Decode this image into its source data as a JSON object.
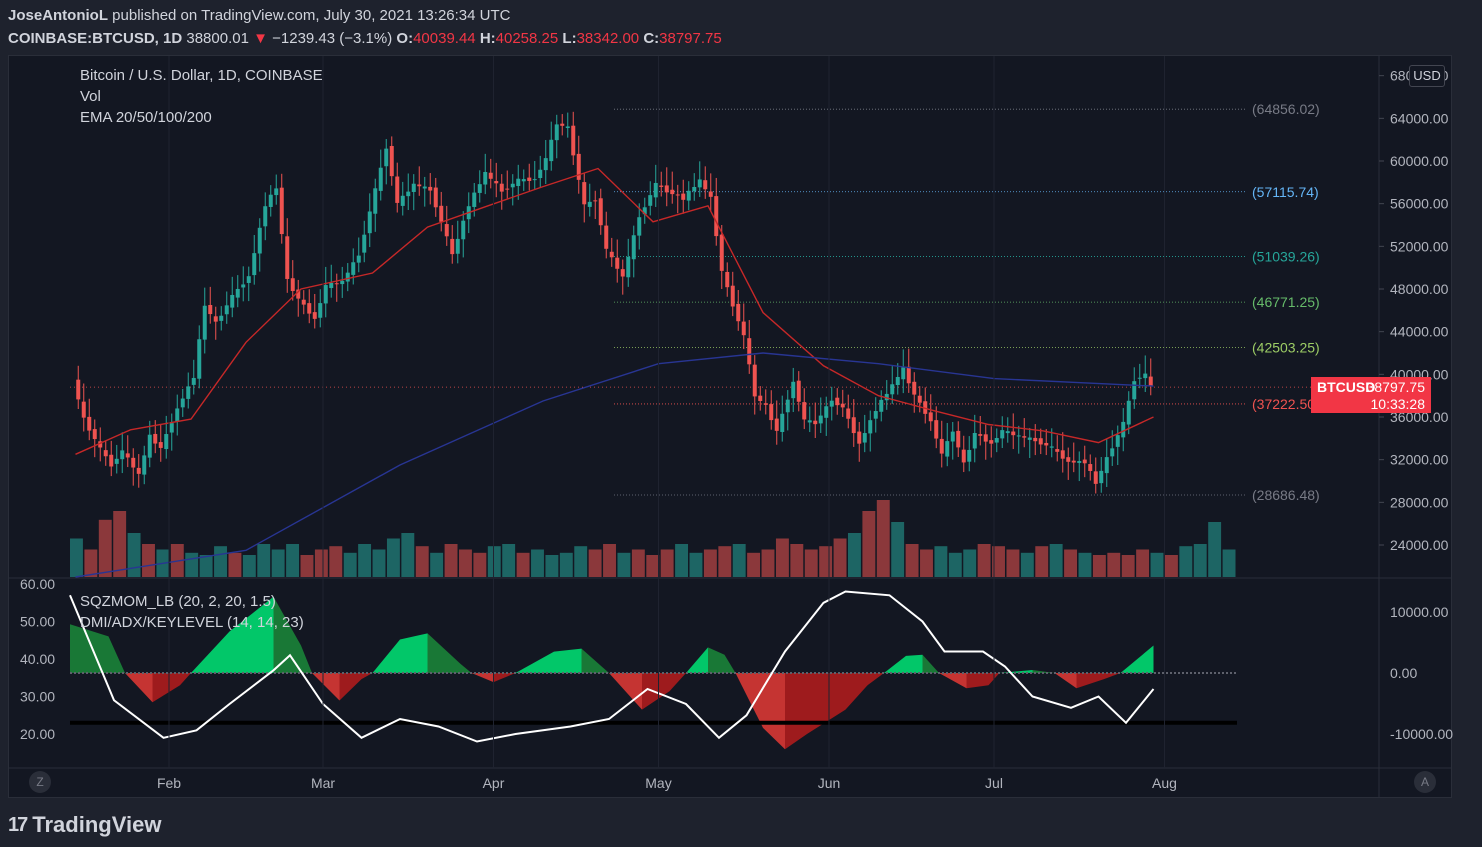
{
  "header": {
    "author": "JoseAntonioL",
    "published_text": "published on TradingView.com, July 30, 2021 13:26:34 UTC",
    "symbol": "COINBASE:BTCUSD, 1D",
    "last": "38800.01",
    "change_arrow": "▼",
    "change": "−1239.43 (−3.1%)",
    "open_label": "O:",
    "open": "40039.44",
    "high_label": "H:",
    "high": "40258.25",
    "low_label": "L:",
    "low": "38342.00",
    "close_label": "C:",
    "close": "38797.75"
  },
  "legend": {
    "title": "Bitcoin / U.S. Dollar, 1D, COINBASE",
    "vol": "Vol",
    "ema": "EMA 20/50/100/200"
  },
  "indicator_legend": {
    "sqz": "SQZMOM_LB (20, 2, 20, 1.5)",
    "dmi": "DMI/ADX/KEYLEVEL (14, 14, 23)"
  },
  "price_badge": {
    "symbol": "BTCUSD",
    "value": "38797.75",
    "countdown": "10:33:28"
  },
  "currency": "USD",
  "scale_buttons": {
    "left": "Z",
    "right": "A"
  },
  "footer": {
    "brand": "TradingView",
    "logo_mark": "17"
  },
  "colors": {
    "background": "#131722",
    "up": "#26a69a",
    "down": "#ef5350",
    "ema_red": "#c62828",
    "ema_blue": "#1a237e",
    "green_hist": "#00c853",
    "red_hist": "#d50000"
  },
  "chart_data": {
    "type": "candlestick",
    "title": "Bitcoin / U.S. Dollar, 1D, COINBASE",
    "price_axis": {
      "ticks": [
        "68000.00",
        "64000.00",
        "60000.00",
        "56000.00",
        "52000.00",
        "48000.00",
        "44000.00",
        "40000.00",
        "36000.00",
        "32000.00",
        "28000.00",
        "24000.00"
      ],
      "ylim": [
        21000,
        69000
      ]
    },
    "time_axis": {
      "ticks": [
        "Feb",
        "Mar",
        "Apr",
        "May",
        "Jun",
        "Jul",
        "Aug"
      ]
    },
    "key_levels": [
      {
        "label": "(64856.02)",
        "value": 64856.02,
        "color": "#787b86"
      },
      {
        "label": "(57115.74)",
        "value": 57115.74,
        "color": "#64b5f6"
      },
      {
        "label": "(51039.26)",
        "value": 51039.26,
        "color": "#26a69a"
      },
      {
        "label": "(46771.25)",
        "value": 46771.25,
        "color": "#66bb6a"
      },
      {
        "label": "(42503.25)",
        "value": 42503.25,
        "color": "#9ccc65"
      },
      {
        "label": "(37222.50)",
        "value": 37222.5,
        "color": "#ef5350"
      },
      {
        "label": "(28686.48)",
        "value": 28686.48,
        "color": "#787b86"
      }
    ],
    "price_path": [
      [
        "2021-01-15",
        39500
      ],
      [
        "2021-01-17",
        35800
      ],
      [
        "2021-01-20",
        33000
      ],
      [
        "2021-01-22",
        31500
      ],
      [
        "2021-01-24",
        32800
      ],
      [
        "2021-01-27",
        30600
      ],
      [
        "2021-01-29",
        34200
      ],
      [
        "2021-01-31",
        33100
      ],
      [
        "2021-02-03",
        36800
      ],
      [
        "2021-02-06",
        39800
      ],
      [
        "2021-02-08",
        46500
      ],
      [
        "2021-02-10",
        44800
      ],
      [
        "2021-02-13",
        47300
      ],
      [
        "2021-02-16",
        49200
      ],
      [
        "2021-02-19",
        55900
      ],
      [
        "2021-02-21",
        57500
      ],
      [
        "2021-02-23",
        48800
      ],
      [
        "2021-02-25",
        47100
      ],
      [
        "2021-02-28",
        45200
      ],
      [
        "2021-03-02",
        48300
      ],
      [
        "2021-03-05",
        48700
      ],
      [
        "2021-03-08",
        51200
      ],
      [
        "2021-03-11",
        57300
      ],
      [
        "2021-03-13",
        61300
      ],
      [
        "2021-03-15",
        56000
      ],
      [
        "2021-03-18",
        57800
      ],
      [
        "2021-03-21",
        57300
      ],
      [
        "2021-03-24",
        52800
      ],
      [
        "2021-03-25",
        51200
      ],
      [
        "2021-03-28",
        55900
      ],
      [
        "2021-03-31",
        58900
      ],
      [
        "2021-04-03",
        57200
      ],
      [
        "2021-04-06",
        58200
      ],
      [
        "2021-04-09",
        58300
      ],
      [
        "2021-04-11",
        60200
      ],
      [
        "2021-04-13",
        63500
      ],
      [
        "2021-04-15",
        63100
      ],
      [
        "2021-04-18",
        55800
      ],
      [
        "2021-04-20",
        56400
      ],
      [
        "2021-04-22",
        51700
      ],
      [
        "2021-04-25",
        49100
      ],
      [
        "2021-04-28",
        54800
      ],
      [
        "2021-05-01",
        57800
      ],
      [
        "2021-05-03",
        57200
      ],
      [
        "2021-05-06",
        56500
      ],
      [
        "2021-05-09",
        58200
      ],
      [
        "2021-05-11",
        56500
      ],
      [
        "2021-05-13",
        49700
      ],
      [
        "2021-05-15",
        46500
      ],
      [
        "2021-05-17",
        43600
      ],
      [
        "2021-05-19",
        38000
      ],
      [
        "2021-05-21",
        37000
      ],
      [
        "2021-05-23",
        34700
      ],
      [
        "2021-05-26",
        39300
      ],
      [
        "2021-05-28",
        35700
      ],
      [
        "2021-05-30",
        35400
      ],
      [
        "2021-06-02",
        37600
      ],
      [
        "2021-06-04",
        36900
      ],
      [
        "2021-06-07",
        33500
      ],
      [
        "2021-06-10",
        36700
      ],
      [
        "2021-06-13",
        39000
      ],
      [
        "2021-06-15",
        40500
      ],
      [
        "2021-06-17",
        38100
      ],
      [
        "2021-06-20",
        35600
      ],
      [
        "2021-06-22",
        32500
      ],
      [
        "2021-06-24",
        34700
      ],
      [
        "2021-06-26",
        31600
      ],
      [
        "2021-06-28",
        34500
      ],
      [
        "2021-07-01",
        33500
      ],
      [
        "2021-07-03",
        34700
      ],
      [
        "2021-07-06",
        34200
      ],
      [
        "2021-07-09",
        33800
      ],
      [
        "2021-07-12",
        33100
      ],
      [
        "2021-07-15",
        31800
      ],
      [
        "2021-07-18",
        31800
      ],
      [
        "2021-07-20",
        29800
      ],
      [
        "2021-07-22",
        32100
      ],
      [
        "2021-07-25",
        35400
      ],
      [
        "2021-07-27",
        39500
      ],
      [
        "2021-07-29",
        40000
      ],
      [
        "2021-07-30",
        38797.75
      ]
    ],
    "ema_20": [
      [
        "2021-01-15",
        32500
      ],
      [
        "2021-01-25",
        34800
      ],
      [
        "2021-02-05",
        35800
      ],
      [
        "2021-02-15",
        43000
      ],
      [
        "2021-02-25",
        48000
      ],
      [
        "2021-03-10",
        49500
      ],
      [
        "2021-03-20",
        53800
      ],
      [
        "2021-03-31",
        55800
      ],
      [
        "2021-04-10",
        57600
      ],
      [
        "2021-04-20",
        59300
      ],
      [
        "2021-04-30",
        54300
      ],
      [
        "2021-05-10",
        55800
      ],
      [
        "2021-05-20",
        45800
      ],
      [
        "2021-05-31",
        40800
      ],
      [
        "2021-06-10",
        38000
      ],
      [
        "2021-06-20",
        36600
      ],
      [
        "2021-06-30",
        35300
      ],
      [
        "2021-07-10",
        34700
      ],
      [
        "2021-07-20",
        33600
      ],
      [
        "2021-07-30",
        36000
      ]
    ],
    "ema_200": [
      [
        "2021-01-15",
        21000
      ],
      [
        "2021-02-15",
        23500
      ],
      [
        "2021-03-15",
        31500
      ],
      [
        "2021-04-10",
        37500
      ],
      [
        "2021-05-01",
        41000
      ],
      [
        "2021-05-20",
        42000
      ],
      [
        "2021-06-10",
        41000
      ],
      [
        "2021-07-01",
        39600
      ],
      [
        "2021-07-30",
        38900
      ]
    ],
    "volume_relative": [
      0.35,
      0.25,
      0.52,
      0.6,
      0.4,
      0.3,
      0.25,
      0.3,
      0.22,
      0.2,
      0.28,
      0.22,
      0.2,
      0.3,
      0.25,
      0.3,
      0.2,
      0.25,
      0.28,
      0.22,
      0.3,
      0.25,
      0.35,
      0.4,
      0.28,
      0.22,
      0.3,
      0.25,
      0.22,
      0.28,
      0.3,
      0.22,
      0.25,
      0.2,
      0.22,
      0.28,
      0.25,
      0.3,
      0.22,
      0.25,
      0.2,
      0.25,
      0.3,
      0.22,
      0.25,
      0.28,
      0.3,
      0.22,
      0.25,
      0.35,
      0.3,
      0.25,
      0.28,
      0.35,
      0.4,
      0.6,
      0.7,
      0.5,
      0.3,
      0.25,
      0.28,
      0.22,
      0.25,
      0.3,
      0.28,
      0.25,
      0.22,
      0.28,
      0.3,
      0.25,
      0.22,
      0.2,
      0.22,
      0.2,
      0.25,
      0.22,
      0.2,
      0.28,
      0.3,
      0.5,
      0.25
    ],
    "indicator_axis_left": {
      "ticks": [
        "60.00",
        "50.00",
        "40.00",
        "30.00",
        "20.00"
      ]
    },
    "indicator_axis_right": {
      "ticks": [
        "10000.00",
        "0.00",
        "-10000.00"
      ]
    },
    "squeeze_momentum": [
      [
        "2021-01-14",
        8000
      ],
      [
        "2021-01-21",
        6000
      ],
      [
        "2021-01-24",
        0
      ],
      [
        "2021-01-29",
        -4800
      ],
      [
        "2021-02-03",
        -2000
      ],
      [
        "2021-02-05",
        0
      ],
      [
        "2021-02-12",
        6800
      ],
      [
        "2021-02-20",
        12500
      ],
      [
        "2021-02-25",
        4500
      ],
      [
        "2021-02-27",
        0
      ],
      [
        "2021-03-04",
        -4500
      ],
      [
        "2021-03-08",
        -1000
      ],
      [
        "2021-03-10",
        0
      ],
      [
        "2021-03-15",
        5500
      ],
      [
        "2021-03-20",
        6500
      ],
      [
        "2021-03-26",
        1500
      ],
      [
        "2021-03-28",
        0
      ],
      [
        "2021-04-01",
        -1500
      ],
      [
        "2021-04-05",
        0
      ],
      [
        "2021-04-12",
        3500
      ],
      [
        "2021-04-17",
        4000
      ],
      [
        "2021-04-22",
        0
      ],
      [
        "2021-04-28",
        -6000
      ],
      [
        "2021-05-03",
        -3000
      ],
      [
        "2021-05-06",
        0
      ],
      [
        "2021-05-10",
        4200
      ],
      [
        "2021-05-13",
        3000
      ],
      [
        "2021-05-15",
        0
      ],
      [
        "2021-05-20",
        -9000
      ],
      [
        "2021-05-24",
        -12500
      ],
      [
        "2021-05-28",
        -10000
      ],
      [
        "2021-06-04",
        -6000
      ],
      [
        "2021-06-08",
        -2000
      ],
      [
        "2021-06-11",
        0
      ],
      [
        "2021-06-15",
        2800
      ],
      [
        "2021-06-18",
        3000
      ],
      [
        "2021-06-21",
        0
      ],
      [
        "2021-06-26",
        -2500
      ],
      [
        "2021-06-30",
        -2000
      ],
      [
        "2021-07-02",
        0
      ],
      [
        "2021-07-08",
        500
      ],
      [
        "2021-07-12",
        0
      ],
      [
        "2021-07-16",
        -2500
      ],
      [
        "2021-07-21",
        -1000
      ],
      [
        "2021-07-24",
        0
      ],
      [
        "2021-07-30",
        4500
      ]
    ],
    "adx": [
      [
        "2021-01-14",
        57
      ],
      [
        "2021-01-22",
        29
      ],
      [
        "2021-01-31",
        19
      ],
      [
        "2021-02-06",
        21
      ],
      [
        "2021-02-12",
        28
      ],
      [
        "2021-02-20",
        37
      ],
      [
        "2021-02-23",
        41
      ],
      [
        "2021-03-01",
        28
      ],
      [
        "2021-03-08",
        19
      ],
      [
        "2021-03-15",
        24
      ],
      [
        "2021-03-22",
        22
      ],
      [
        "2021-03-29",
        18
      ],
      [
        "2021-04-05",
        20
      ],
      [
        "2021-04-15",
        22
      ],
      [
        "2021-04-22",
        24
      ],
      [
        "2021-04-29",
        32
      ],
      [
        "2021-05-06",
        28
      ],
      [
        "2021-05-12",
        19
      ],
      [
        "2021-05-17",
        25
      ],
      [
        "2021-05-24",
        42
      ],
      [
        "2021-05-31",
        55
      ],
      [
        "2021-06-04",
        58
      ],
      [
        "2021-06-12",
        57
      ],
      [
        "2021-06-18",
        50
      ],
      [
        "2021-06-22",
        42
      ],
      [
        "2021-06-29",
        42
      ],
      [
        "2021-07-03",
        38
      ],
      [
        "2021-07-08",
        30
      ],
      [
        "2021-07-15",
        27
      ],
      [
        "2021-07-20",
        30
      ],
      [
        "2021-07-25",
        23
      ],
      [
        "2021-07-30",
        32
      ]
    ],
    "key_level_adx": 23
  }
}
